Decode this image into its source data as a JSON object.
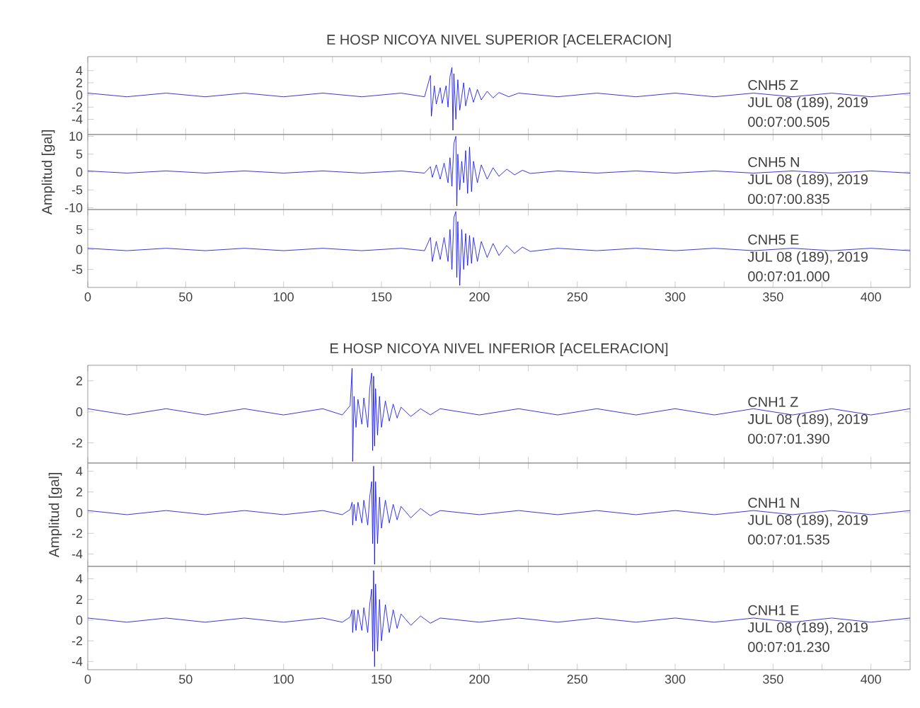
{
  "chart_data": [
    {
      "type": "line",
      "title": "E HOSP NICOYA NIVEL SUPERIOR [ACELERACION]",
      "xlim": [
        0,
        420
      ],
      "ylim": [
        -6.5,
        6.3
      ],
      "tick_labels": "y",
      "xticks": [
        0,
        {
          "value": 25,
          "label": null
        },
        50,
        {
          "value": 75,
          "label": null
        },
        100,
        {
          "value": 125,
          "label": null
        },
        150,
        {
          "value": 175,
          "label": null
        },
        200,
        {
          "value": 225,
          "label": null
        },
        250,
        {
          "value": 275,
          "label": null
        },
        300,
        {
          "value": 325,
          "label": null
        },
        350,
        {
          "value": 375,
          "label": null
        },
        400
      ],
      "yticks": [
        -4,
        -2,
        0,
        2,
        4
      ],
      "annotations": [
        "CNH5   Z",
        "JUL 08 (189), 2019",
        "00:07:00.505"
      ],
      "series": [
        {
          "color": "#0000ff",
          "x": [
            0,
            20,
            40,
            60,
            80,
            100,
            120,
            140,
            160,
            172,
            175,
            175.5,
            177,
            178,
            180,
            181,
            183,
            184,
            185,
            186,
            186.5,
            187,
            188,
            189,
            190,
            192,
            193,
            195,
            197,
            199,
            201,
            204,
            207,
            210,
            215,
            220,
            240,
            260,
            280,
            300,
            320,
            340,
            360,
            380,
            400,
            420
          ],
          "values": [
            0.3,
            -0.3,
            0.3,
            -0.3,
            0.3,
            -0.3,
            0.3,
            -0.3,
            0.3,
            -0.3,
            3.2,
            -3.5,
            1.5,
            -1.5,
            1.2,
            -1.4,
            1.5,
            -2,
            3,
            4.5,
            -5.8,
            3.5,
            -4,
            2.5,
            -2.5,
            2,
            -1.8,
            1.2,
            -1.2,
            0.9,
            -0.8,
            0.6,
            -0.5,
            0.4,
            -0.3,
            0.3,
            -0.3,
            0.3,
            -0.3,
            0.3,
            -0.3,
            0.3,
            -0.3,
            0.3,
            -0.3,
            0.3
          ]
        }
      ]
    },
    {
      "type": "line",
      "ylabel": "Amplitud [gal]",
      "xlim": [
        0,
        420
      ],
      "ylim": [
        -10.5,
        10.5
      ],
      "tick_labels": "y",
      "xticks": [
        0,
        {
          "value": 25,
          "label": null
        },
        50,
        {
          "value": 75,
          "label": null
        },
        100,
        {
          "value": 125,
          "label": null
        },
        150,
        {
          "value": 175,
          "label": null
        },
        200,
        {
          "value": 225,
          "label": null
        },
        250,
        {
          "value": 275,
          "label": null
        },
        300,
        {
          "value": 325,
          "label": null
        },
        350,
        {
          "value": 375,
          "label": null
        },
        400
      ],
      "yticks": [
        -10,
        -5,
        0,
        5,
        10
      ],
      "annotations": [
        "CNH5   N",
        "JUL 08 (189), 2019",
        "00:07:00.835"
      ],
      "series": [
        {
          "color": "#0000ff",
          "x": [
            0,
            20,
            40,
            60,
            80,
            100,
            120,
            140,
            160,
            172,
            175,
            176,
            178,
            180,
            182,
            184,
            185,
            186,
            187,
            188,
            188.5,
            189,
            190,
            191,
            192,
            193,
            194,
            195,
            196,
            197,
            199,
            201,
            204,
            207,
            210,
            214,
            218,
            222,
            226,
            240,
            260,
            280,
            300,
            320,
            340,
            360,
            380,
            400,
            420
          ],
          "values": [
            0.3,
            -0.3,
            0.3,
            -0.3,
            0.3,
            -0.3,
            0.3,
            -0.3,
            0.3,
            -0.3,
            1.5,
            -1.5,
            2,
            -2,
            2.5,
            -3,
            4,
            -4,
            8,
            10,
            -9.5,
            5,
            -5,
            3,
            -3,
            6,
            -6,
            7,
            -5.5,
            3,
            -3,
            2,
            -2,
            1.2,
            -1.2,
            0.8,
            -0.8,
            0.5,
            -0.4,
            0.3,
            -0.3,
            0.3,
            -0.3,
            0.3,
            -0.3,
            0.3,
            -0.3,
            0.3,
            -0.3
          ]
        }
      ]
    },
    {
      "type": "line",
      "xlim": [
        0,
        420
      ],
      "ylim": [
        -9.5,
        10
      ],
      "xticks": [
        0,
        {
          "value": 25,
          "label": null
        },
        50,
        {
          "value": 75,
          "label": null
        },
        100,
        {
          "value": 125,
          "label": null
        },
        150,
        {
          "value": 175,
          "label": null
        },
        200,
        {
          "value": 225,
          "label": null
        },
        250,
        {
          "value": 275,
          "label": null
        },
        300,
        {
          "value": 325,
          "label": null
        },
        350,
        {
          "value": 375,
          "label": null
        },
        400
      ],
      "yticks": [
        -5,
        0,
        5
      ],
      "annotations": [
        "CNH5   E",
        "JUL 08 (189), 2019",
        "00:07:01.000"
      ],
      "series": [
        {
          "color": "#0000ff",
          "x": [
            0,
            20,
            40,
            60,
            80,
            100,
            120,
            140,
            160,
            172,
            175,
            176,
            178,
            180,
            182,
            184,
            185,
            186,
            187,
            188,
            188.5,
            189,
            190,
            191,
            192,
            193,
            194,
            195,
            196,
            197,
            199,
            201,
            204,
            207,
            210,
            214,
            218,
            222,
            226,
            240,
            260,
            280,
            300,
            320,
            340,
            360,
            380,
            400,
            420
          ],
          "values": [
            0.3,
            -0.3,
            0.3,
            -0.3,
            0.3,
            -0.3,
            0.3,
            -0.3,
            0.3,
            -0.3,
            3,
            -3,
            2,
            -2.5,
            3,
            -3,
            5,
            -5,
            8,
            9.5,
            -7,
            7,
            -9,
            5,
            -5,
            4,
            -4,
            3.5,
            -3.5,
            3,
            -3,
            2,
            -2,
            1.5,
            -1.5,
            1,
            -1,
            0.6,
            -0.5,
            0.3,
            -0.3,
            0.3,
            -0.3,
            0.3,
            -0.3,
            0.3,
            -0.3,
            0.3,
            -0.3
          ]
        }
      ]
    },
    {
      "type": "line",
      "title": "E HOSP NICOYA NIVEL INFERIOR [ACELERACION]",
      "xlim": [
        0,
        420
      ],
      "ylim": [
        -3.3,
        3
      ],
      "tick_labels": "y",
      "xticks": [
        0,
        {
          "value": 25,
          "label": null
        },
        50,
        {
          "value": 75,
          "label": null
        },
        100,
        {
          "value": 125,
          "label": null
        },
        150,
        {
          "value": 175,
          "label": null
        },
        200,
        {
          "value": 225,
          "label": null
        },
        250,
        {
          "value": 275,
          "label": null
        },
        300,
        {
          "value": 325,
          "label": null
        },
        350,
        {
          "value": 375,
          "label": null
        },
        400
      ],
      "yticks": [
        -2,
        0,
        2
      ],
      "annotations": [
        "CNH1   Z",
        "JUL 08 (189), 2019",
        "00:07:01.390"
      ],
      "series": [
        {
          "color": "#0000ff",
          "x": [
            0,
            20,
            40,
            60,
            80,
            100,
            120,
            130,
            134,
            135,
            135.3,
            136,
            137,
            138,
            140,
            141,
            143,
            144,
            145,
            145.5,
            146,
            146.5,
            147,
            148,
            149,
            150,
            152,
            154,
            156,
            158,
            160,
            165,
            170,
            175,
            180,
            200,
            220,
            240,
            260,
            280,
            300,
            320,
            340,
            360,
            380,
            400,
            420
          ],
          "values": [
            0.2,
            -0.2,
            0.2,
            -0.2,
            0.2,
            -0.2,
            0.2,
            -0.2,
            0.4,
            2.8,
            -3.2,
            1,
            -1,
            0.8,
            -0.8,
            0.9,
            -1,
            1.5,
            2.5,
            -2.5,
            2.3,
            -2.2,
            1.5,
            -1.5,
            1,
            -1,
            0.7,
            -0.6,
            0.5,
            -0.4,
            0.3,
            -0.3,
            0.2,
            -0.2,
            0.2,
            -0.2,
            0.2,
            -0.2,
            0.2,
            -0.2,
            0.2,
            -0.2,
            0.2,
            -0.2,
            0.2,
            -0.2,
            0.2
          ]
        }
      ]
    },
    {
      "type": "line",
      "ylabel": "Amplitud [gal]",
      "xlim": [
        0,
        420
      ],
      "ylim": [
        -5.2,
        4.8
      ],
      "tick_labels": "y",
      "xticks": [
        0,
        {
          "value": 25,
          "label": null
        },
        50,
        {
          "value": 75,
          "label": null
        },
        100,
        {
          "value": 125,
          "label": null
        },
        150,
        {
          "value": 175,
          "label": null
        },
        200,
        {
          "value": 225,
          "label": null
        },
        250,
        {
          "value": 275,
          "label": null
        },
        300,
        {
          "value": 325,
          "label": null
        },
        350,
        {
          "value": 375,
          "label": null
        },
        400
      ],
      "yticks": [
        -4,
        -2,
        0,
        2,
        4
      ],
      "annotations": [
        "CNH1   N",
        "JUL 08 (189), 2019",
        "00:07:01.535"
      ],
      "series": [
        {
          "color": "#0000ff",
          "x": [
            0,
            20,
            40,
            60,
            80,
            100,
            120,
            130,
            134,
            135,
            135.3,
            136,
            137,
            138,
            140,
            141,
            143,
            144,
            145,
            145.5,
            146,
            146.5,
            147,
            148,
            149,
            150,
            152,
            154,
            156,
            158,
            160,
            165,
            170,
            175,
            180,
            200,
            220,
            240,
            260,
            280,
            300,
            320,
            340,
            360,
            380,
            400,
            420
          ],
          "values": [
            0.2,
            -0.2,
            0.2,
            -0.2,
            0.2,
            -0.2,
            0.2,
            -0.2,
            0.3,
            1,
            -1.2,
            0.8,
            -0.8,
            1,
            -1,
            1.2,
            -1.2,
            1.5,
            3,
            -3,
            4.5,
            -5,
            3,
            -3,
            1.5,
            -1.5,
            1.2,
            -1,
            0.8,
            -0.7,
            0.6,
            -0.5,
            0.4,
            -0.3,
            0.2,
            -0.2,
            0.2,
            -0.2,
            0.2,
            -0.2,
            0.2,
            -0.2,
            0.2,
            -0.2,
            0.2,
            -0.2,
            0.2
          ]
        }
      ]
    },
    {
      "type": "line",
      "xlim": [
        0,
        420
      ],
      "ylim": [
        -4.8,
        5.2
      ],
      "xticks": [
        0,
        {
          "value": 25,
          "label": null
        },
        50,
        {
          "value": 75,
          "label": null
        },
        100,
        {
          "value": 125,
          "label": null
        },
        150,
        {
          "value": 175,
          "label": null
        },
        200,
        {
          "value": 225,
          "label": null
        },
        250,
        {
          "value": 275,
          "label": null
        },
        300,
        {
          "value": 325,
          "label": null
        },
        350,
        {
          "value": 375,
          "label": null
        },
        400
      ],
      "yticks": [
        -4,
        -2,
        0,
        2,
        4
      ],
      "annotations": [
        "CNH1   E",
        "JUL 08 (189), 2019",
        "00:07:01.230"
      ],
      "series": [
        {
          "color": "#0000ff",
          "x": [
            0,
            20,
            40,
            60,
            80,
            100,
            120,
            130,
            134,
            135,
            135.3,
            136,
            137,
            138,
            140,
            141,
            143,
            144,
            145,
            145.5,
            146,
            146.5,
            147,
            148,
            149,
            150,
            152,
            154,
            156,
            158,
            160,
            165,
            170,
            175,
            180,
            200,
            220,
            240,
            260,
            280,
            300,
            320,
            340,
            360,
            380,
            400,
            420
          ],
          "values": [
            0.2,
            -0.2,
            0.2,
            -0.2,
            0.2,
            -0.2,
            0.2,
            -0.2,
            0.3,
            1,
            -1.2,
            1,
            -1,
            1,
            -1,
            1.2,
            -1.2,
            1.5,
            3,
            -3,
            4.8,
            -4.5,
            3.5,
            -3,
            2,
            -2,
            1.5,
            -1.2,
            1,
            -0.8,
            0.6,
            -0.5,
            0.4,
            -0.3,
            0.2,
            -0.2,
            0.2,
            -0.2,
            0.2,
            -0.2,
            0.2,
            -0.2,
            0.2,
            -0.2,
            0.2,
            -0.2,
            0.2
          ]
        }
      ]
    }
  ]
}
